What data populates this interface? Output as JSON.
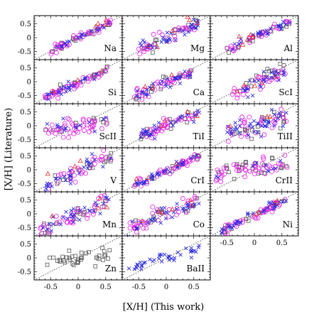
{
  "figure": {
    "xlabel": "[X/H] (This work)",
    "ylabel": "[X/H] (Literature)"
  },
  "chart_data": {
    "type": "scatter",
    "layout": "small-multiples 6x3",
    "xlim": [
      -0.8,
      0.8
    ],
    "ylim": [
      -0.8,
      0.8
    ],
    "xticks": [
      -0.5,
      0,
      0.5
    ],
    "yticks": [
      -0.5,
      0,
      0.5
    ],
    "xtick_labels": [
      "-0.5",
      "0",
      "0.5"
    ],
    "ytick_labels": [
      "-0.5",
      "0",
      "0.5"
    ],
    "reference_line": "one-to-one (dotted)",
    "colors": {
      "black_square": "#555555",
      "blue_cross": "#2a2ae0",
      "magenta_circle": "#e020e0",
      "red_triangle": "#e03030"
    },
    "panels": [
      {
        "label": "Na",
        "slope": 0.95,
        "offset": 0.0,
        "spread": 0.07,
        "xrange": [
          -0.5,
          0.6
        ],
        "counts": {
          "circle": 40,
          "cross": 20,
          "square": 15,
          "triangle": 4
        }
      },
      {
        "label": "Mg",
        "slope": 0.9,
        "offset": 0.0,
        "spread": 0.12,
        "xrange": [
          -0.5,
          0.6
        ],
        "counts": {
          "circle": 30,
          "cross": 35,
          "square": 15,
          "triangle": 6
        }
      },
      {
        "label": "Al",
        "slope": 0.95,
        "offset": 0.0,
        "spread": 0.1,
        "xrange": [
          -0.5,
          0.65
        ],
        "counts": {
          "circle": 30,
          "cross": 25,
          "square": 15,
          "triangle": 6
        }
      },
      {
        "label": "Si",
        "slope": 0.9,
        "offset": -0.05,
        "spread": 0.08,
        "xrange": [
          -0.6,
          0.6
        ],
        "counts": {
          "circle": 40,
          "cross": 25,
          "square": 15,
          "triangle": 3
        }
      },
      {
        "label": "Ca",
        "slope": 0.85,
        "offset": -0.05,
        "spread": 0.1,
        "xrange": [
          -0.6,
          0.5
        ],
        "counts": {
          "circle": 35,
          "cross": 30,
          "square": 15,
          "triangle": 3
        }
      },
      {
        "label": "ScI",
        "slope": 1.0,
        "offset": -0.1,
        "spread": 0.15,
        "xrange": [
          -0.4,
          0.6
        ],
        "counts": {
          "circle": 30,
          "cross": 30,
          "square": 15,
          "triangle": 5
        }
      },
      {
        "label": "ScII",
        "slope": 0.3,
        "offset": 0.0,
        "spread": 0.15,
        "xrange": [
          -0.6,
          0.6
        ],
        "counts": {
          "circle": 45,
          "cross": 15,
          "square": 10,
          "triangle": 0
        }
      },
      {
        "label": "TiI",
        "slope": 0.8,
        "offset": 0.0,
        "spread": 0.12,
        "xrange": [
          -0.5,
          0.6
        ],
        "counts": {
          "circle": 35,
          "cross": 30,
          "square": 15,
          "triangle": 4
        }
      },
      {
        "label": "TiII",
        "slope": 0.5,
        "offset": 0.0,
        "spread": 0.18,
        "xrange": [
          -0.5,
          0.6
        ],
        "counts": {
          "circle": 30,
          "cross": 40,
          "square": 20,
          "triangle": 3
        }
      },
      {
        "label": "V",
        "slope": 0.9,
        "offset": -0.05,
        "spread": 0.15,
        "xrange": [
          -0.6,
          0.6
        ],
        "counts": {
          "circle": 30,
          "cross": 30,
          "square": 15,
          "triangle": 3
        }
      },
      {
        "label": "CrI",
        "slope": 0.9,
        "offset": -0.05,
        "spread": 0.08,
        "xrange": [
          -0.6,
          0.6
        ],
        "counts": {
          "circle": 40,
          "cross": 35,
          "square": 15,
          "triangle": 3
        }
      },
      {
        "label": "CrII",
        "slope": 0.35,
        "offset": 0.05,
        "spread": 0.18,
        "xrange": [
          -0.7,
          0.6
        ],
        "counts": {
          "circle": 45,
          "cross": 10,
          "square": 25,
          "triangle": 0
        }
      },
      {
        "label": "Mn",
        "slope": 0.8,
        "offset": -0.05,
        "spread": 0.15,
        "xrange": [
          -0.7,
          0.6
        ],
        "counts": {
          "circle": 35,
          "cross": 30,
          "square": 15,
          "triangle": 4
        }
      },
      {
        "label": "Co",
        "slope": 0.8,
        "offset": 0.0,
        "spread": 0.15,
        "xrange": [
          -0.7,
          0.6
        ],
        "counts": {
          "circle": 35,
          "cross": 35,
          "square": 15,
          "triangle": 6
        }
      },
      {
        "label": "Ni",
        "slope": 0.95,
        "offset": -0.05,
        "spread": 0.08,
        "xrange": [
          -0.6,
          0.6
        ],
        "counts": {
          "circle": 40,
          "cross": 35,
          "square": 15,
          "triangle": 4
        }
      },
      {
        "label": "Zn",
        "slope": 0.3,
        "offset": 0.0,
        "spread": 0.15,
        "xrange": [
          -0.6,
          0.6
        ],
        "counts": {
          "circle": 0,
          "cross": 0,
          "square": 40,
          "triangle": 0
        }
      },
      {
        "label": "BaII",
        "slope": 0.5,
        "offset": 0.0,
        "spread": 0.1,
        "xrange": [
          -0.7,
          0.6
        ],
        "counts": {
          "circle": 0,
          "cross": 40,
          "square": 0,
          "triangle": 0
        }
      }
    ]
  }
}
